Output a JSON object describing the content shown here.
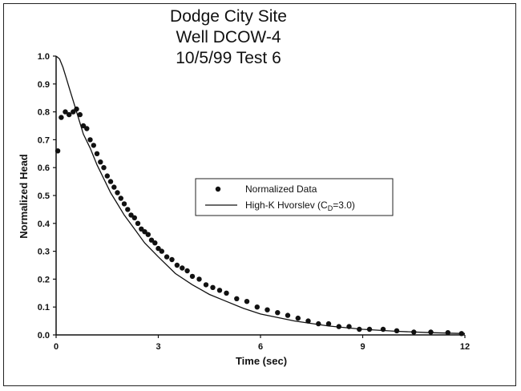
{
  "title": {
    "line1": "Dodge City Site",
    "line2": "Well DCOW-4",
    "line3": "10/5/99 Test 6"
  },
  "chart_data": {
    "type": "scatter",
    "title": "Dodge City Site / Well DCOW-4 / 10/5/99 Test 6",
    "xlabel": "Time (sec)",
    "ylabel": "Normalized Head",
    "xlim": [
      0,
      12
    ],
    "ylim": [
      0,
      1.0
    ],
    "xticks": [
      "0",
      "3",
      "6",
      "9",
      "12"
    ],
    "yticks": [
      "0.0",
      "0.1",
      "0.2",
      "0.3",
      "0.4",
      "0.5",
      "0.6",
      "0.7",
      "0.8",
      "0.9",
      "1.0"
    ],
    "grid": false,
    "legend_position": "center-right",
    "series": [
      {
        "name": "Normalized Data",
        "kind": "points",
        "color": "#111111",
        "x": [
          0.05,
          0.15,
          0.27,
          0.38,
          0.5,
          0.6,
          0.7,
          0.8,
          0.9,
          1.0,
          1.1,
          1.2,
          1.3,
          1.4,
          1.5,
          1.6,
          1.7,
          1.8,
          1.9,
          2.0,
          2.1,
          2.2,
          2.3,
          2.4,
          2.5,
          2.6,
          2.7,
          2.8,
          2.9,
          3.0,
          3.1,
          3.25,
          3.4,
          3.55,
          3.7,
          3.85,
          4.0,
          4.2,
          4.4,
          4.6,
          4.8,
          5.0,
          5.3,
          5.6,
          5.9,
          6.2,
          6.5,
          6.8,
          7.1,
          7.4,
          7.7,
          8.0,
          8.3,
          8.6,
          8.9,
          9.2,
          9.6,
          10.0,
          10.5,
          11.0,
          11.5,
          11.9
        ],
        "y": [
          0.66,
          0.78,
          0.8,
          0.79,
          0.8,
          0.81,
          0.79,
          0.75,
          0.74,
          0.7,
          0.68,
          0.65,
          0.62,
          0.6,
          0.57,
          0.55,
          0.53,
          0.51,
          0.49,
          0.47,
          0.45,
          0.43,
          0.42,
          0.4,
          0.38,
          0.37,
          0.36,
          0.34,
          0.33,
          0.31,
          0.3,
          0.28,
          0.27,
          0.25,
          0.24,
          0.23,
          0.21,
          0.2,
          0.18,
          0.17,
          0.16,
          0.15,
          0.13,
          0.12,
          0.1,
          0.09,
          0.08,
          0.07,
          0.06,
          0.05,
          0.04,
          0.04,
          0.03,
          0.03,
          0.02,
          0.02,
          0.02,
          0.015,
          0.01,
          0.01,
          0.008,
          0.005
        ]
      },
      {
        "name": "High-K Hvorslev (C",
        "name_sub": "D",
        "name_suffix": "=3.0)",
        "kind": "line",
        "color": "#111111",
        "x": [
          0,
          0.1,
          0.2,
          0.3,
          0.4,
          0.5,
          0.6,
          0.7,
          0.8,
          1.0,
          1.2,
          1.4,
          1.6,
          1.8,
          2.0,
          2.3,
          2.6,
          3.0,
          3.5,
          4.0,
          4.5,
          5.0,
          5.5,
          6.0,
          7.0,
          8.0,
          9.0,
          10.0,
          11.0,
          12.0
        ],
        "y": [
          1.0,
          0.99,
          0.96,
          0.92,
          0.88,
          0.84,
          0.8,
          0.76,
          0.72,
          0.67,
          0.61,
          0.56,
          0.51,
          0.47,
          0.43,
          0.38,
          0.33,
          0.28,
          0.22,
          0.18,
          0.145,
          0.12,
          0.095,
          0.075,
          0.05,
          0.032,
          0.02,
          0.013,
          0.008,
          0.005
        ]
      }
    ]
  }
}
